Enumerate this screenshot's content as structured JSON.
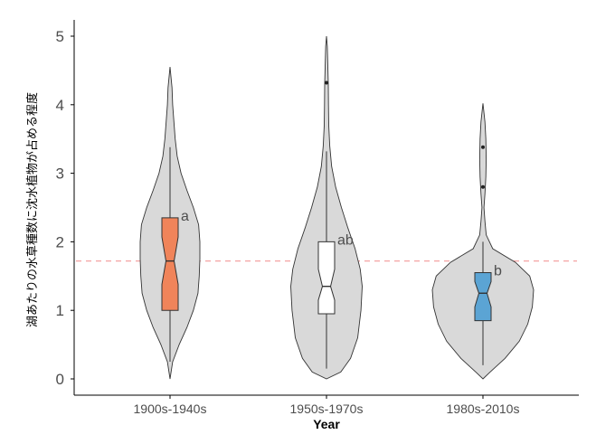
{
  "chart_data": {
    "type": "violin",
    "xlabel": "Year",
    "ylabel": "湖あたりの水草種数に沈水植物が占める程度",
    "ylim": [
      0,
      5
    ],
    "yticks": [
      0,
      1,
      2,
      3,
      4,
      5
    ],
    "reference_line": {
      "y": 1.72,
      "color": "#f4a3a3",
      "style": "dashed"
    },
    "grid": false,
    "categories": [
      "1900s-1940s",
      "1950s-1970s",
      "1980s-2010s"
    ],
    "groups": [
      {
        "label": "1900s-1940s",
        "letter": "a",
        "box_color": "#f0845a",
        "violin_color": "#d9d9d9",
        "box": {
          "q1": 1.0,
          "median": 1.72,
          "q3": 2.35,
          "notch_low": 1.38,
          "notch_high": 2.07,
          "whisker_low": 0.25,
          "whisker_high": 3.38
        },
        "outliers": [],
        "density": [
          [
            0.0,
            0.0
          ],
          [
            0.25,
            0.04
          ],
          [
            0.5,
            0.14
          ],
          [
            0.75,
            0.26
          ],
          [
            1.0,
            0.36
          ],
          [
            1.25,
            0.43
          ],
          [
            1.5,
            0.45
          ],
          [
            1.75,
            0.46
          ],
          [
            2.0,
            0.46
          ],
          [
            2.25,
            0.44
          ],
          [
            2.5,
            0.36
          ],
          [
            2.75,
            0.26
          ],
          [
            3.0,
            0.17
          ],
          [
            3.25,
            0.11
          ],
          [
            3.5,
            0.08
          ],
          [
            3.75,
            0.06
          ],
          [
            4.0,
            0.04
          ],
          [
            4.25,
            0.03
          ],
          [
            4.55,
            0.0
          ]
        ]
      },
      {
        "label": "1950s-1970s",
        "letter": "ab",
        "box_color": "#ffffff",
        "violin_color": "#d9d9d9",
        "box": {
          "q1": 0.95,
          "median": 1.35,
          "q3": 2.0,
          "notch_low": 1.15,
          "notch_high": 1.6,
          "whisker_low": 0.15,
          "whisker_high": 3.32
        },
        "outliers": [
          4.32
        ],
        "density": [
          [
            0.0,
            0.0
          ],
          [
            0.1,
            0.22
          ],
          [
            0.3,
            0.37
          ],
          [
            0.6,
            0.48
          ],
          [
            1.0,
            0.53
          ],
          [
            1.35,
            0.55
          ],
          [
            1.6,
            0.52
          ],
          [
            1.9,
            0.44
          ],
          [
            2.2,
            0.33
          ],
          [
            2.5,
            0.23
          ],
          [
            2.8,
            0.14
          ],
          [
            3.1,
            0.08
          ],
          [
            3.4,
            0.05
          ],
          [
            3.7,
            0.035
          ],
          [
            4.0,
            0.03
          ],
          [
            4.3,
            0.028
          ],
          [
            4.6,
            0.02
          ],
          [
            4.85,
            0.012
          ],
          [
            5.0,
            0.0
          ]
        ]
      },
      {
        "label": "1980s-2010s",
        "letter": "b",
        "box_color": "#5ba4d4",
        "violin_color": "#d9d9d9",
        "box": {
          "q1": 0.85,
          "median": 1.25,
          "q3": 1.55,
          "notch_low": 1.05,
          "notch_high": 1.42,
          "whisker_low": 0.2,
          "whisker_high": 2.0
        },
        "outliers": [
          2.8,
          3.38
        ],
        "density": [
          [
            0.0,
            0.0
          ],
          [
            0.1,
            0.11
          ],
          [
            0.3,
            0.34
          ],
          [
            0.55,
            0.56
          ],
          [
            0.8,
            0.69
          ],
          [
            1.05,
            0.76
          ],
          [
            1.3,
            0.78
          ],
          [
            1.5,
            0.72
          ],
          [
            1.7,
            0.5
          ],
          [
            1.9,
            0.15
          ],
          [
            2.1,
            0.05
          ],
          [
            2.3,
            0.03
          ],
          [
            2.5,
            0.015
          ],
          [
            2.7,
            0.03
          ],
          [
            2.95,
            0.045
          ],
          [
            3.2,
            0.05
          ],
          [
            3.5,
            0.045
          ],
          [
            3.75,
            0.03
          ],
          [
            4.02,
            0.0
          ]
        ]
      }
    ]
  }
}
